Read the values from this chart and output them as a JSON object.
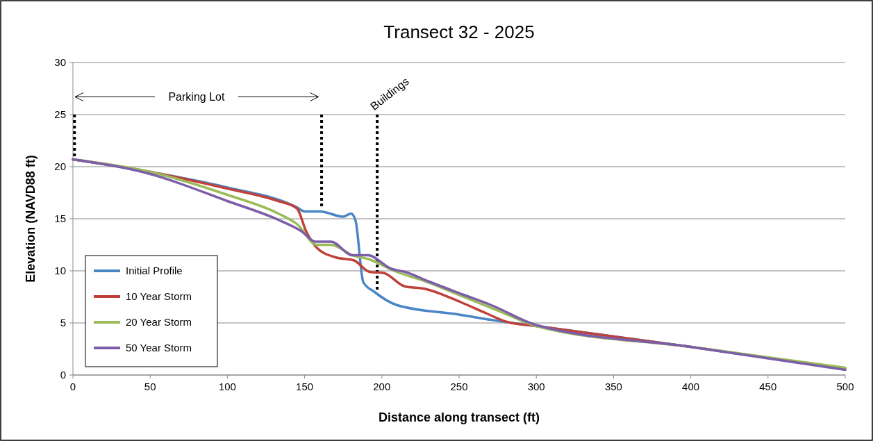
{
  "chart_data": {
    "type": "line",
    "title": "Transect 32 - 2025",
    "xlabel": "Distance along transect (ft)",
    "ylabel": "Elevation (NAVD88 ft)",
    "xlim": [
      0,
      500
    ],
    "xticks": [
      0,
      50,
      100,
      150,
      200,
      250,
      300,
      350,
      400,
      450,
      500
    ],
    "ylim": [
      0,
      30
    ],
    "yticks": [
      0,
      5,
      10,
      15,
      20,
      25,
      30
    ],
    "grid": "y",
    "legend": "bottom left",
    "marker": "none",
    "line_style": "solid",
    "annotations": [
      "Parking Lot",
      "Buildings"
    ],
    "ref_lines": [
      {
        "axis": "x",
        "value": 1,
        "color": "#000000",
        "line_style": "dotted"
      },
      {
        "axis": "x",
        "value": 161,
        "color": "#000000",
        "line_style": "dotted"
      },
      {
        "axis": "x",
        "value": 197,
        "color": "#000000",
        "line_style": "dotted"
      }
    ],
    "series": [
      {
        "name": "Initial Profile",
        "color": "#4a86c6",
        "x": [
          0,
          50,
          100,
          145,
          150,
          160,
          175,
          180,
          183,
          188,
          195,
          210,
          250,
          275,
          300,
          400,
          500
        ],
        "values": [
          20.7,
          19.5,
          18.0,
          16.1,
          15.7,
          15.7,
          15.2,
          15.5,
          14.8,
          8.9,
          8.0,
          6.7,
          5.8,
          5.2,
          4.7,
          2.7,
          0.6
        ]
      },
      {
        "name": "10 Year Storm",
        "color": "#c0403a",
        "x": [
          0,
          50,
          100,
          133,
          145,
          151,
          158,
          170,
          182,
          192,
          201,
          215,
          227,
          251,
          268,
          281,
          300,
          400,
          500
        ],
        "values": [
          20.7,
          19.5,
          17.9,
          16.7,
          16.0,
          13.8,
          12.2,
          11.3,
          11.0,
          9.9,
          9.8,
          8.5,
          8.3,
          7.0,
          5.9,
          5.1,
          4.7,
          2.7,
          0.6
        ]
      },
      {
        "name": "20 Year Storm",
        "color": "#9bbb59",
        "x": [
          0,
          50,
          100,
          133,
          145,
          158,
          167,
          181,
          192,
          208,
          230,
          253,
          275,
          300,
          400,
          500
        ],
        "values": [
          20.7,
          19.5,
          17.3,
          15.5,
          14.5,
          12.5,
          12.5,
          11.5,
          11.1,
          10.0,
          8.9,
          7.5,
          6.2,
          4.7,
          2.7,
          0.7
        ]
      },
      {
        "name": "50 Year Storm",
        "color": "#7c5ea8",
        "x": [
          0,
          50,
          100,
          133,
          148,
          157,
          167,
          181,
          191,
          206,
          215,
          230,
          253,
          271,
          300,
          400,
          500
        ],
        "values": [
          20.7,
          19.3,
          16.7,
          14.9,
          13.8,
          12.8,
          12.8,
          11.5,
          11.5,
          10.2,
          9.9,
          9.0,
          7.7,
          6.7,
          4.8,
          2.7,
          0.5
        ]
      }
    ]
  }
}
